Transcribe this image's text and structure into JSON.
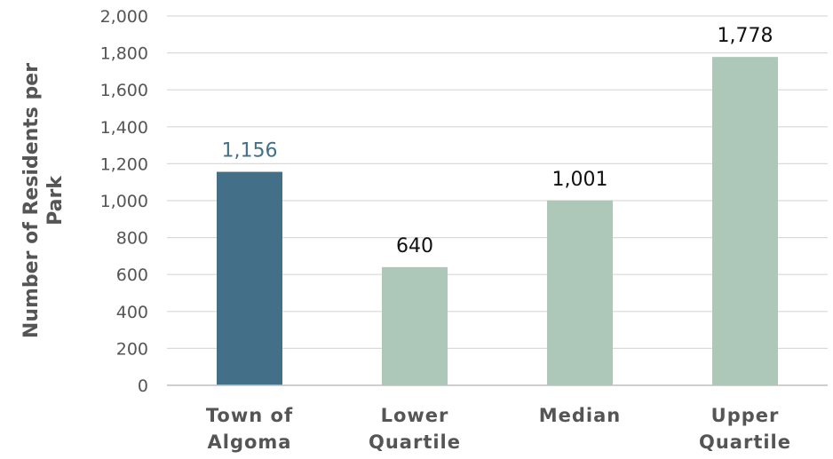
{
  "chart_data": {
    "type": "bar",
    "title": "",
    "xlabel": "",
    "ylabel": "Number of Residents per Park",
    "ylim": [
      0,
      2000
    ],
    "yticks": [
      0,
      200,
      400,
      600,
      800,
      1000,
      1200,
      1400,
      1600,
      1800,
      2000
    ],
    "ytick_labels": [
      "0",
      "200",
      "400",
      "600",
      "800",
      "1,000",
      "1,200",
      "1,400",
      "1,600",
      "1,800",
      "2,000"
    ],
    "grid": true,
    "categories": [
      [
        "Town of",
        "Algoma"
      ],
      [
        "Lower",
        "Quartile"
      ],
      [
        "Median"
      ],
      [
        "Upper",
        "Quartile"
      ]
    ],
    "values": [
      1156,
      640,
      1001,
      1778
    ],
    "value_labels": [
      "1,156",
      "640",
      "1,001",
      "1,778"
    ],
    "bar_colors": [
      "#436f89",
      "#adc7b9",
      "#adc7b9",
      "#adc7b9"
    ],
    "value_label_colors": [
      "#436f89",
      "#111111",
      "#111111",
      "#111111"
    ],
    "axis_color": "#555555",
    "grid_color": "#d9d9d9",
    "text_color": "#555555"
  }
}
